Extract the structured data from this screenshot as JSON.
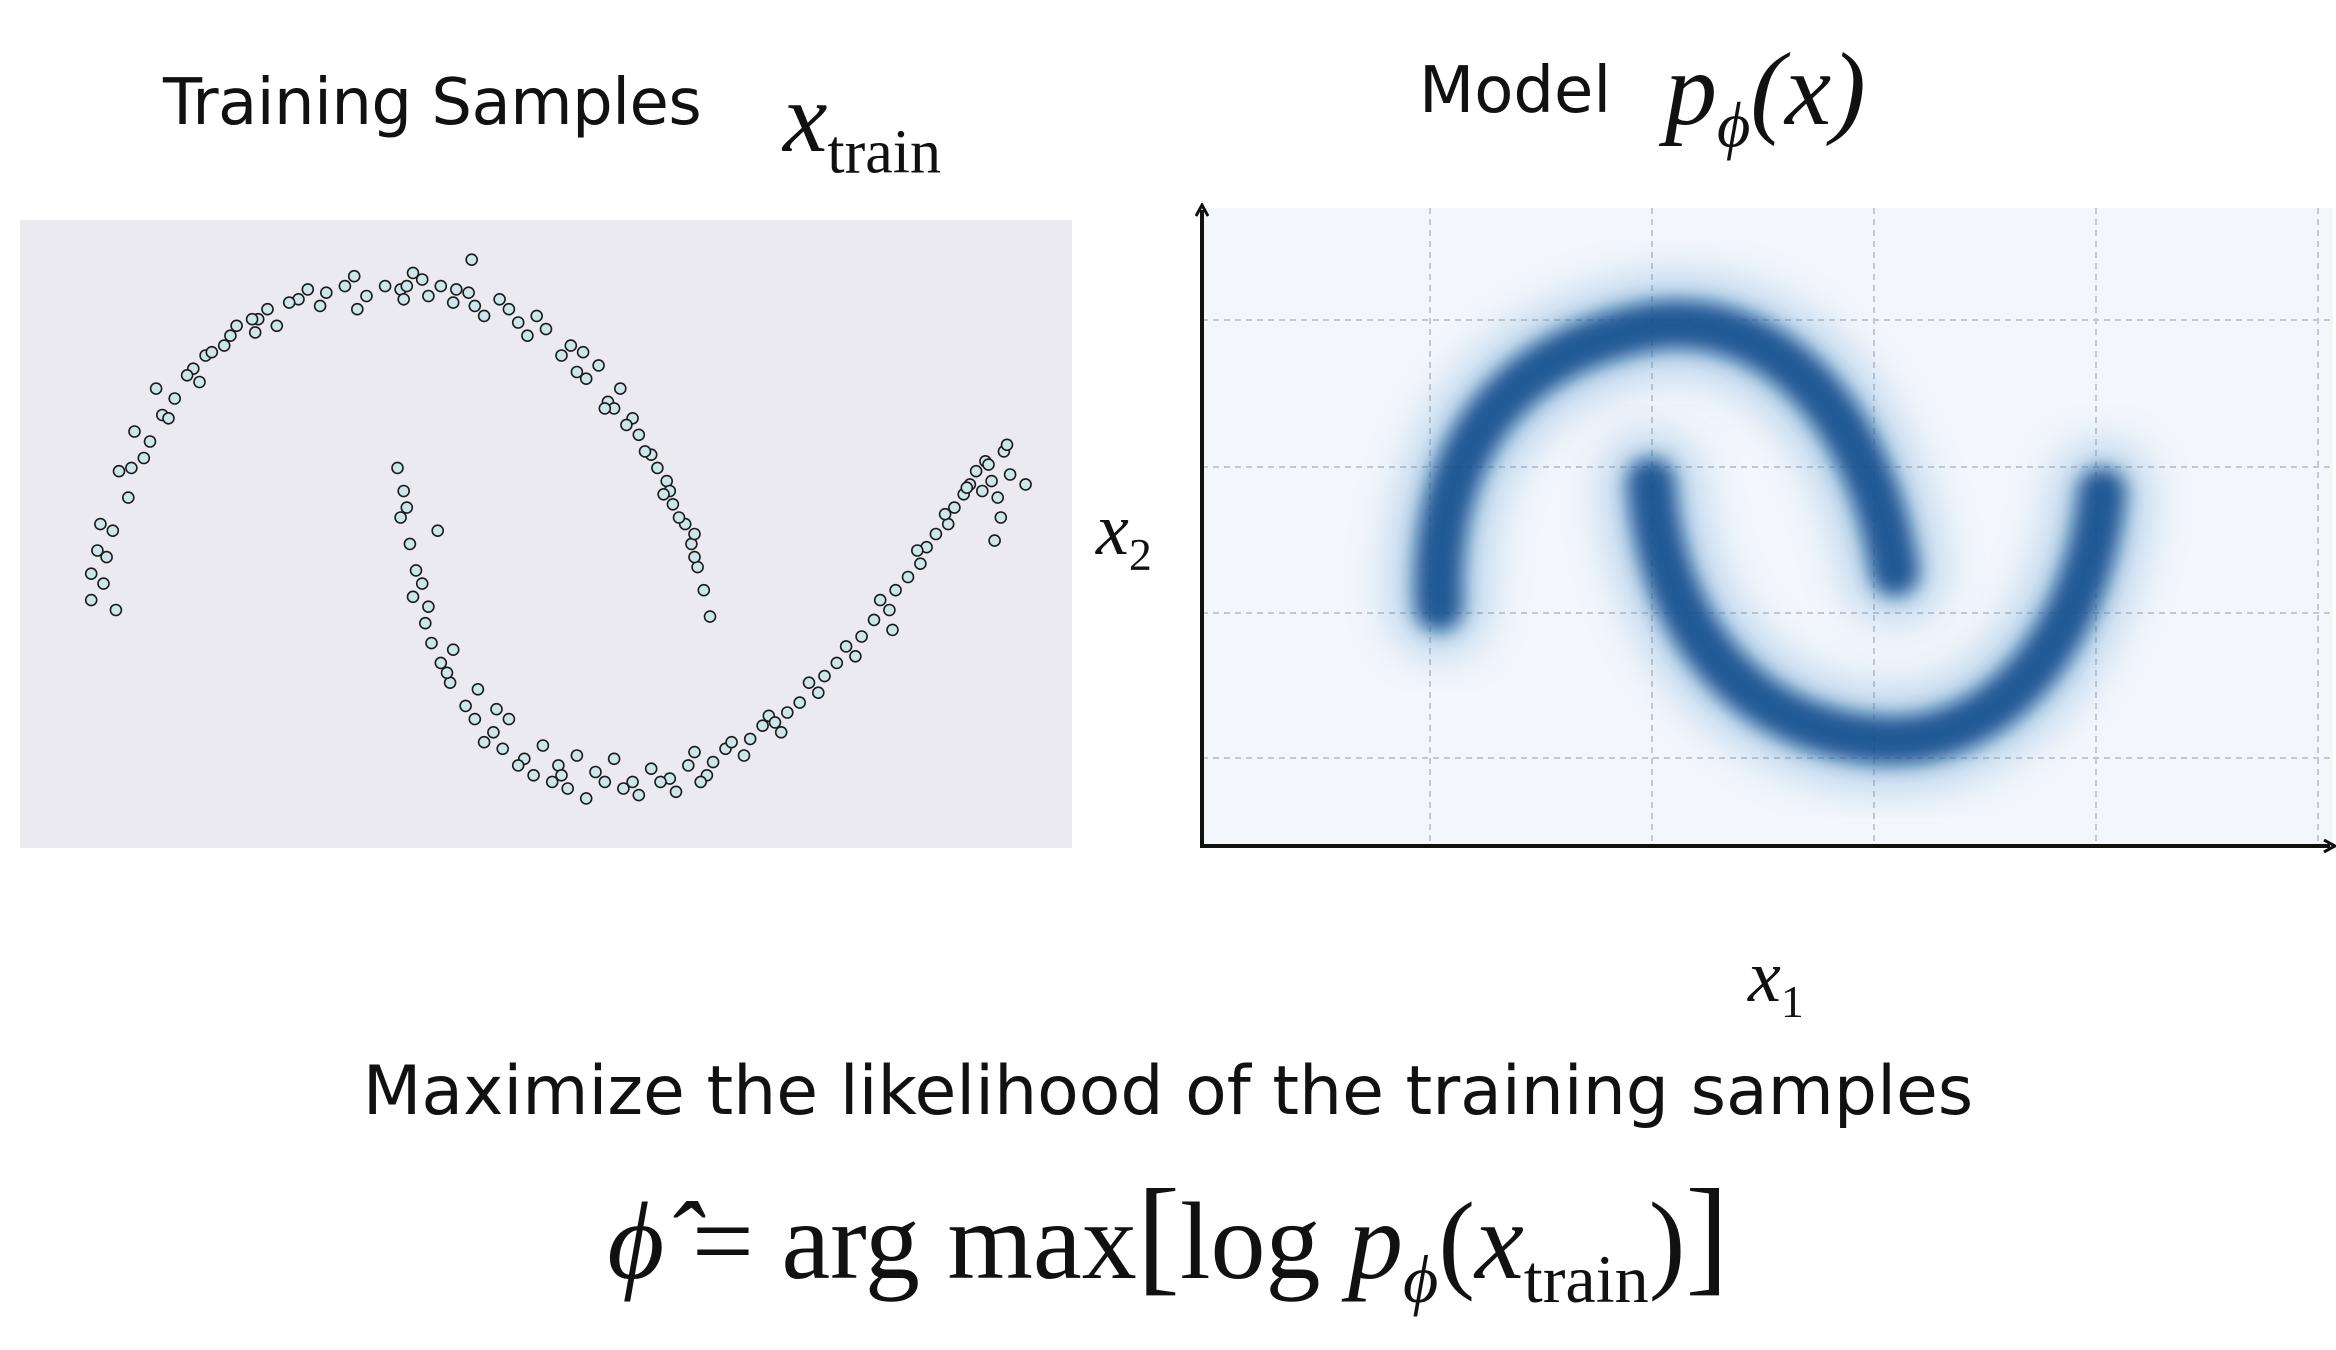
{
  "left_panel": {
    "title": "Training Samples",
    "math_symbol": "x",
    "math_sub": "train"
  },
  "right_panel": {
    "title": "Model",
    "math_symbol": "p",
    "math_sub": "ϕ",
    "math_arg": "(x)",
    "x_axis_symbol": "x",
    "x_axis_sub": "1",
    "y_axis_symbol": "x",
    "y_axis_sub": "2"
  },
  "objective": {
    "text": "Maximize the likelihood of the training samples",
    "phi_hat": "ϕ̂",
    "equals": "=",
    "argmax": "arg max",
    "open_bracket": "[",
    "log": "log",
    "p": "p",
    "p_sub": "ϕ",
    "open_paren": "(",
    "x": "x",
    "x_sub": "train",
    "close_paren": ")",
    "close_bracket": "]"
  },
  "colors": {
    "scatter_background": "#eaeaf0",
    "point_fill": "#cde6ea",
    "point_edge": "#1b1b1b",
    "density_background": "#f3f7fc",
    "density_color": "#0d3f79",
    "grid": "#c4c8d0"
  },
  "chart_data": [
    {
      "type": "scatter",
      "title": "",
      "xlabel": "",
      "ylabel": "",
      "dataset": "two interleaving half-moons",
      "xlim": [
        -1.2,
        2.2
      ],
      "ylim": [
        -0.7,
        1.2
      ],
      "series": [
        {
          "x": [
            -0.97,
            -0.93,
            -0.95,
            -0.9,
            -0.92,
            -0.85,
            -0.88,
            -0.8,
            -0.83,
            -0.74,
            -0.7,
            -0.76,
            -0.64,
            -0.6,
            -0.66,
            -0.52,
            -0.5,
            -0.54,
            -0.43,
            -0.4,
            -0.37,
            -0.3,
            -0.27,
            -0.23,
            -0.15,
            -0.12,
            -0.08,
            -0.02,
            0.03,
            0.07,
            0.12,
            0.16,
            0.2,
            0.27,
            0.3,
            0.35,
            0.41,
            0.44,
            0.5,
            0.55,
            0.58,
            0.63,
            0.67,
            0.7,
            0.74,
            0.78,
            0.8,
            0.84,
            0.86,
            0.89,
            0.91,
            0.95,
            0.97,
            0.99,
            1.01,
            -0.89,
            -0.78,
            -0.58,
            -0.44,
            -0.21,
            0.05,
            0.38,
            0.6,
            0.72,
            0.82,
            0.9,
            0.93,
            -0.97,
            -0.94,
            -0.84,
            -0.72,
            -0.45,
            -0.33,
            0.1,
            0.21,
            0.47,
            0.62,
            0.76,
            0.88,
            0.98,
            1.03,
            0.26,
            -0.11,
            -0.62,
            0.04,
            0.25,
            0.69,
            0.98
          ],
          "y": [
            0.05,
            0.1,
            0.2,
            0.26,
            0.18,
            0.36,
            0.44,
            0.48,
            0.56,
            0.61,
            0.66,
            0.69,
            0.75,
            0.79,
            0.73,
            0.85,
            0.88,
            0.82,
            0.9,
            0.93,
            0.88,
            0.96,
            0.99,
            0.94,
            1.0,
            1.03,
            0.97,
            1.0,
            0.99,
            1.04,
            0.97,
            1.0,
            0.95,
            0.94,
            0.91,
            0.96,
            0.89,
            0.85,
            0.87,
            0.79,
            0.82,
            0.72,
            0.76,
            0.65,
            0.69,
            0.6,
            0.55,
            0.49,
            0.45,
            0.41,
            0.34,
            0.28,
            0.22,
            0.15,
            0.08,
            0.02,
            0.53,
            0.8,
            0.86,
            0.98,
            1.0,
            0.93,
            0.74,
            0.63,
            0.5,
            0.38,
            0.3,
            0.13,
            0.28,
            0.45,
            0.6,
            0.9,
            0.95,
            1.02,
            0.99,
            0.91,
            0.8,
            0.58,
            0.37,
            0.18,
            0.0,
            1.08,
            0.93,
            0.71,
            0.96,
            0.98,
            0.63,
            0.25
          ],
          "name": ""
        },
        {
          "x": [
            0.02,
            0.04,
            0.03,
            0.06,
            0.08,
            0.07,
            0.11,
            0.13,
            0.12,
            0.16,
            0.19,
            0.2,
            0.24,
            0.27,
            0.28,
            0.33,
            0.36,
            0.38,
            0.43,
            0.46,
            0.49,
            0.54,
            0.57,
            0.6,
            0.66,
            0.69,
            0.72,
            0.78,
            0.8,
            0.84,
            0.9,
            0.92,
            0.96,
            1.02,
            1.04,
            1.08,
            1.14,
            1.16,
            1.2,
            1.26,
            1.28,
            1.32,
            1.38,
            1.4,
            1.44,
            1.5,
            1.52,
            1.56,
            1.61,
            1.63,
            1.67,
            1.71,
            1.73,
            1.76,
            1.8,
            1.82,
            1.85,
            1.87,
            1.89,
            1.92,
            1.94,
            1.96,
            1.98,
            2.0,
            1.97,
            1.95,
            0.05,
            0.1,
            0.18,
            0.3,
            0.41,
            0.52,
            0.63,
            0.75,
            0.87,
            0.98,
            1.1,
            1.22,
            1.35,
            1.47,
            1.58,
            1.7,
            1.79,
            1.86,
            1.93,
            1.99,
            0.15,
            0.34,
            0.55,
            1.0,
            1.24,
            1.62,
            1.91,
            2.05
          ],
          "y": [
            0.45,
            0.38,
            0.3,
            0.22,
            0.14,
            0.06,
            -0.02,
            -0.08,
            0.03,
            -0.14,
            -0.2,
            -0.1,
            -0.27,
            -0.31,
            -0.22,
            -0.35,
            -0.4,
            -0.31,
            -0.43,
            -0.48,
            -0.39,
            -0.45,
            -0.52,
            -0.42,
            -0.47,
            -0.5,
            -0.43,
            -0.5,
            -0.54,
            -0.46,
            -0.49,
            -0.53,
            -0.45,
            -0.48,
            -0.44,
            -0.4,
            -0.42,
            -0.37,
            -0.33,
            -0.35,
            -0.29,
            -0.26,
            -0.23,
            -0.18,
            -0.14,
            -0.12,
            -0.06,
            -0.01,
            0.02,
            0.08,
            0.12,
            0.16,
            0.21,
            0.25,
            0.28,
            0.33,
            0.37,
            0.4,
            0.44,
            0.47,
            0.41,
            0.36,
            0.5,
            0.43,
            0.3,
            0.23,
            0.33,
            0.1,
            -0.17,
            -0.38,
            -0.45,
            -0.5,
            -0.55,
            -0.52,
            -0.5,
            -0.41,
            -0.38,
            -0.3,
            -0.2,
            -0.09,
            0.05,
            0.2,
            0.31,
            0.39,
            0.46,
            0.52,
            0.26,
            -0.28,
            -0.48,
            -0.5,
            -0.32,
            -0.04,
            0.38,
            0.4
          ],
          "name": ""
        }
      ],
      "marker": "circle",
      "grid": false
    },
    {
      "type": "heatmap",
      "title": "",
      "xlabel": "x1",
      "ylabel": "x2",
      "grid": true,
      "grid_columns": 5,
      "grid_rows": 4,
      "tick_labels": false,
      "description": "density concentrated on two interleaving half-moon arcs (model p_phi(x))"
    }
  ]
}
